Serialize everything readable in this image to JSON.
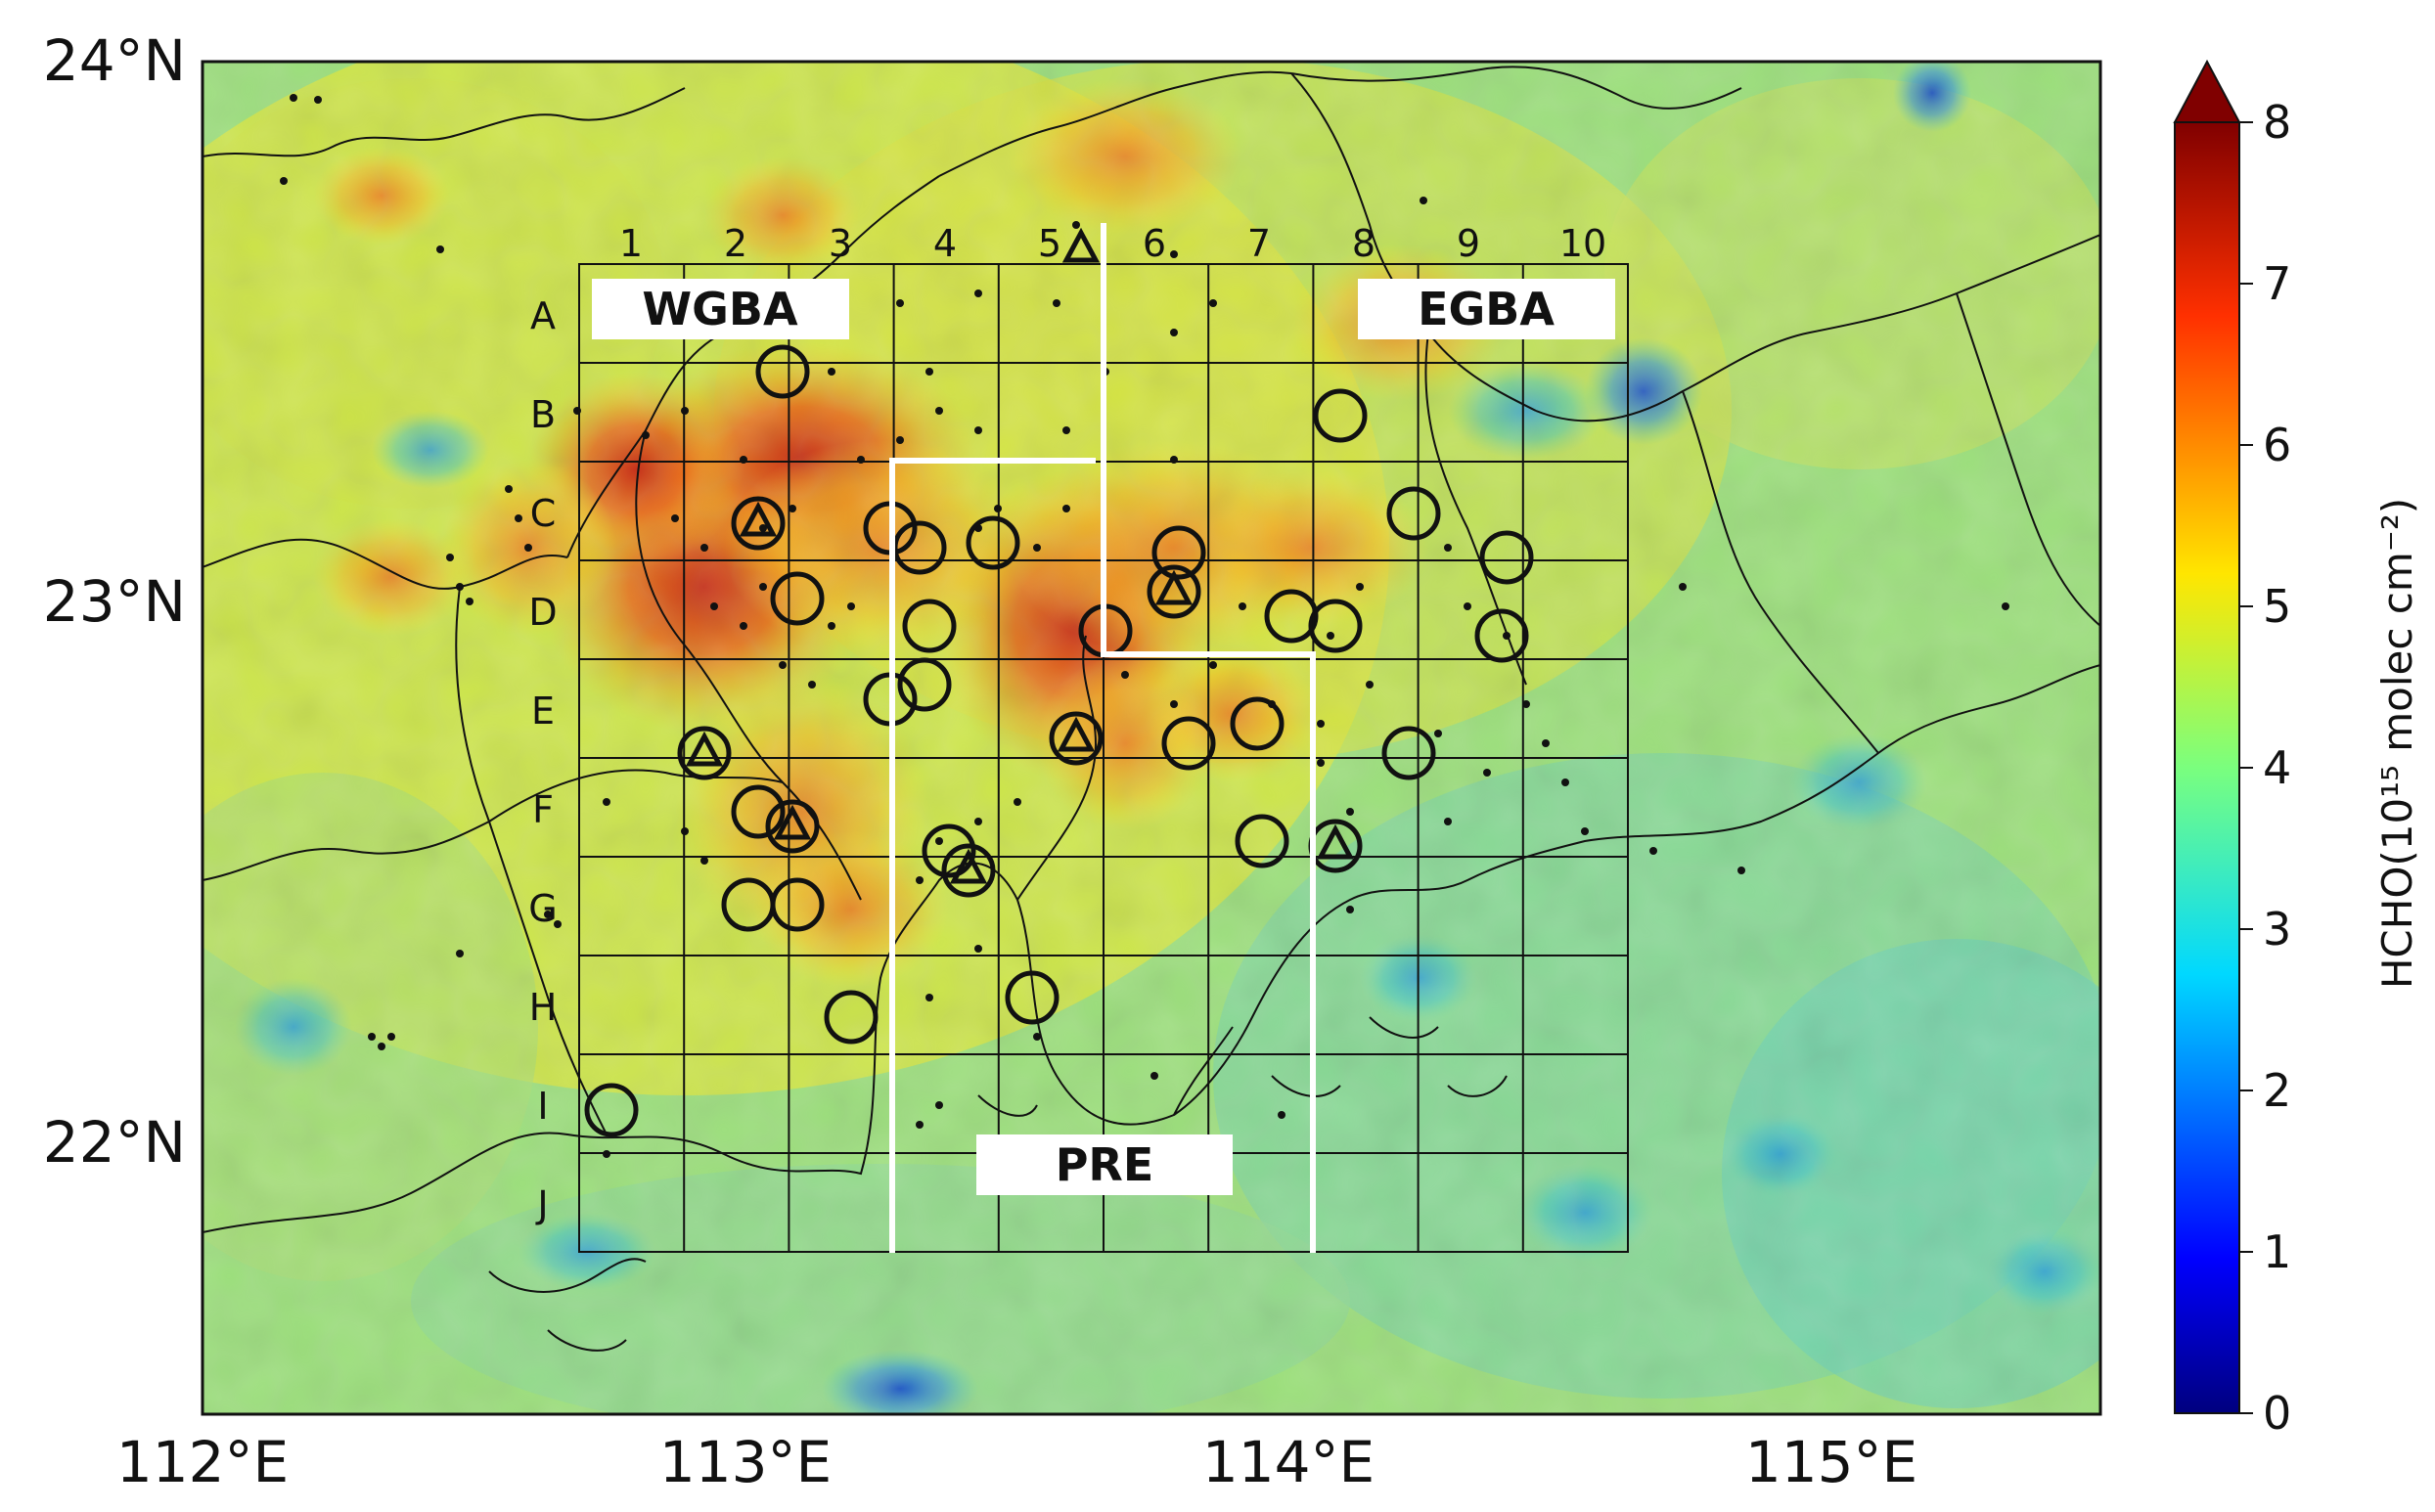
{
  "map": {
    "lon_ticks": [
      "112°E",
      "113°E",
      "114°E",
      "115°E"
    ],
    "lat_ticks": [
      "24°N",
      "23°N",
      "22°N"
    ],
    "grid_columns": [
      "1",
      "2",
      "3",
      "4",
      "5",
      "6",
      "7",
      "8",
      "9",
      "10"
    ],
    "grid_rows": [
      "A",
      "B",
      "C",
      "D",
      "E",
      "F",
      "G",
      "H",
      "I",
      "J"
    ],
    "regions": {
      "west": "WGBA",
      "east": "EGBA",
      "estuary": "PRE"
    }
  },
  "colorbar": {
    "label": "HCHO(10¹⁵ molec cm⁻²)",
    "ticks": [
      "0",
      "1",
      "2",
      "3",
      "4",
      "5",
      "6",
      "7",
      "8"
    ],
    "range": [
      0,
      8
    ],
    "colormap": "jet",
    "extend": "max"
  }
}
